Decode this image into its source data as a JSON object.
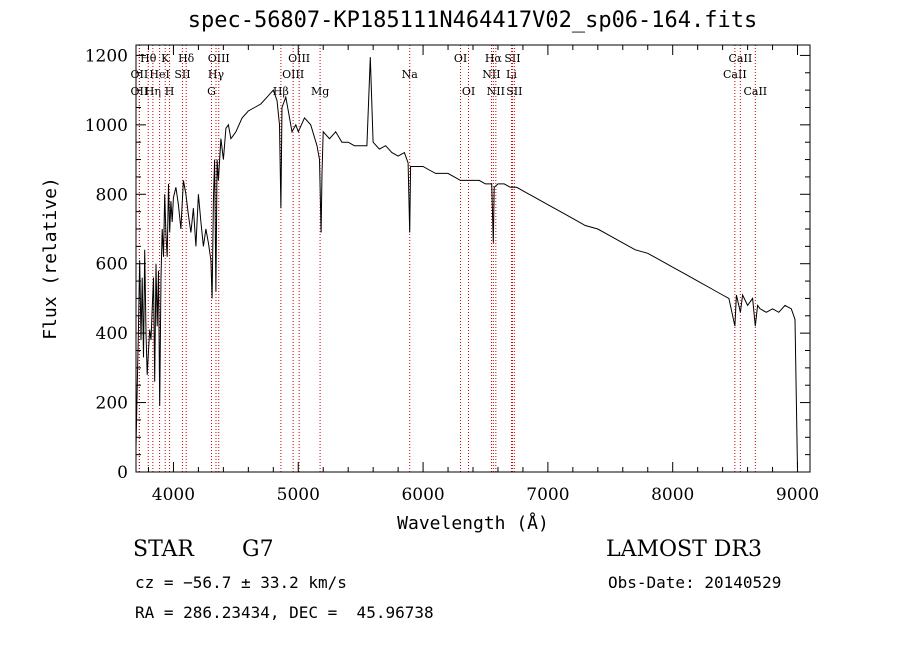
{
  "title": "spec-56807-KP185111N464417V02_sp06-164.fits",
  "info": {
    "object_class": "STAR",
    "subclass": "G7",
    "survey": "LAMOST DR3",
    "cz": "cz = −56.7 ± 33.2 km/s",
    "obs_date": "Obs-Date: 20140529",
    "coords": "RA = 286.23434, DEC =  45.96738"
  },
  "chart_data": {
    "type": "line",
    "title": "spec-56807-KP185111N464417V02_sp06-164.fits",
    "xlabel": "Wavelength (Å)",
    "ylabel": "Flux (relative)",
    "xlim": [
      3700,
      9100
    ],
    "ylim": [
      0,
      1230
    ],
    "xticks": [
      4000,
      5000,
      6000,
      7000,
      8000,
      9000
    ],
    "yticks": [
      0,
      200,
      400,
      600,
      800,
      1000,
      1200
    ],
    "grid": false,
    "line_color": "#000000",
    "marker_color": "#cc0000",
    "series": [
      {
        "x": [
          3700,
          3710,
          3720,
          3730,
          3740,
          3750,
          3760,
          3770,
          3780,
          3790,
          3800,
          3810,
          3820,
          3830,
          3840,
          3850,
          3860,
          3870,
          3880,
          3890,
          3900,
          3910,
          3920,
          3930,
          3940,
          3950,
          3960,
          3970,
          3980,
          3990,
          4000,
          4020,
          4040,
          4060,
          4080,
          4100,
          4120,
          4140,
          4160,
          4180,
          4200,
          4220,
          4240,
          4260,
          4280,
          4300,
          4310,
          4320,
          4330,
          4340,
          4350,
          4360,
          4380,
          4400,
          4420,
          4440,
          4460,
          4480,
          4500,
          4550,
          4600,
          4650,
          4700,
          4750,
          4800,
          4830,
          4850,
          4861,
          4870,
          4900,
          4920,
          4950,
          4980,
          5000,
          5050,
          5100,
          5150,
          5170,
          5183,
          5190,
          5200,
          5250,
          5300,
          5350,
          5400,
          5450,
          5500,
          5550,
          5577,
          5600,
          5650,
          5700,
          5750,
          5800,
          5850,
          5880,
          5893,
          5900,
          5950,
          6000,
          6050,
          6100,
          6150,
          6200,
          6250,
          6300,
          6350,
          6400,
          6450,
          6500,
          6550,
          6563,
          6570,
          6600,
          6650,
          6700,
          6750,
          6800,
          6850,
          6900,
          6950,
          7000,
          7100,
          7200,
          7300,
          7400,
          7500,
          7600,
          7700,
          7800,
          7900,
          8000,
          8100,
          8200,
          8300,
          8400,
          8450,
          8498,
          8510,
          8542,
          8560,
          8600,
          8640,
          8662,
          8680,
          8700,
          8750,
          8800,
          8850,
          8900,
          8950,
          8980,
          9000
        ],
        "y": [
          70,
          240,
          420,
          610,
          380,
          560,
          330,
          640,
          400,
          280,
          350,
          410,
          380,
          470,
          560,
          260,
          600,
          420,
          580,
          190,
          560,
          700,
          620,
          800,
          680,
          620,
          830,
          690,
          780,
          720,
          790,
          820,
          770,
          700,
          840,
          800,
          740,
          690,
          760,
          650,
          800,
          720,
          650,
          700,
          660,
          610,
          500,
          780,
          900,
          520,
          900,
          840,
          960,
          900,
          990,
          1000,
          960,
          970,
          980,
          1020,
          1040,
          1050,
          1060,
          1080,
          1100,
          1070,
          1000,
          760,
          1050,
          1080,
          1040,
          980,
          1000,
          980,
          1020,
          1000,
          940,
          900,
          690,
          860,
          980,
          960,
          980,
          950,
          950,
          940,
          940,
          940,
          1195,
          950,
          930,
          940,
          920,
          910,
          920,
          890,
          690,
          880,
          880,
          880,
          870,
          860,
          860,
          860,
          850,
          840,
          840,
          840,
          840,
          830,
          830,
          660,
          820,
          830,
          830,
          820,
          820,
          810,
          800,
          790,
          780,
          770,
          750,
          730,
          710,
          700,
          680,
          660,
          640,
          630,
          610,
          590,
          570,
          550,
          530,
          510,
          500,
          420,
          510,
          460,
          510,
          480,
          500,
          420,
          480,
          470,
          460,
          470,
          460,
          480,
          470,
          440,
          5
        ]
      }
    ],
    "line_markers": [
      {
        "label": "Hθ",
        "x": 3798,
        "row": 1
      },
      {
        "label": "OII",
        "x": 3727,
        "row": 2
      },
      {
        "label": "OII",
        "x": 3727,
        "row": 3
      },
      {
        "label": "Hη",
        "x": 3835,
        "row": 3
      },
      {
        "label": "HeI",
        "x": 3889,
        "row": 2
      },
      {
        "label": "K",
        "x": 3934,
        "row": 1
      },
      {
        "label": "H",
        "x": 3969,
        "row": 3
      },
      {
        "label": "SII",
        "x": 4072,
        "row": 2
      },
      {
        "label": "Hδ",
        "x": 4102,
        "row": 1
      },
      {
        "label": "G",
        "x": 4305,
        "row": 3
      },
      {
        "label": "Hγ",
        "x": 4341,
        "row": 2
      },
      {
        "label": "OIII",
        "x": 4363,
        "row": 1
      },
      {
        "label": "Hβ",
        "x": 4861,
        "row": 3
      },
      {
        "label": "OIII",
        "x": 4959,
        "row": 2
      },
      {
        "label": "OIII",
        "x": 5007,
        "row": 1
      },
      {
        "label": "Mg",
        "x": 5175,
        "row": 3
      },
      {
        "label": "Na",
        "x": 5893,
        "row": 2
      },
      {
        "label": "OI",
        "x": 6300,
        "row": 1
      },
      {
        "label": "OI",
        "x": 6364,
        "row": 3
      },
      {
        "label": "NII",
        "x": 6548,
        "row": 2
      },
      {
        "label": "Hα",
        "x": 6563,
        "row": 1
      },
      {
        "label": "NII",
        "x": 6583,
        "row": 3
      },
      {
        "label": "Li",
        "x": 6708,
        "row": 2
      },
      {
        "label": "SII",
        "x": 6716,
        "row": 1
      },
      {
        "label": "SII",
        "x": 6731,
        "row": 3
      },
      {
        "label": "CaII",
        "x": 8498,
        "row": 2
      },
      {
        "label": "CaII",
        "x": 8542,
        "row": 1
      },
      {
        "label": "CaII",
        "x": 8662,
        "row": 3
      }
    ]
  }
}
